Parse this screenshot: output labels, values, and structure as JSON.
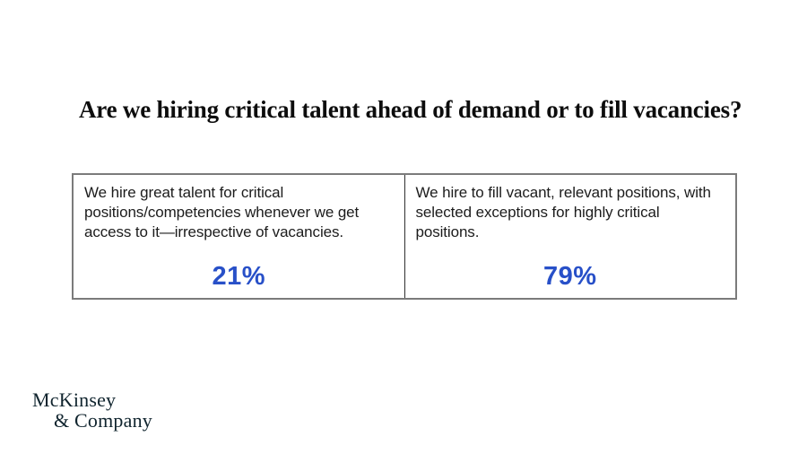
{
  "slide": {
    "title": "Are we hiring critical talent ahead of demand or to fill vacancies?",
    "options": [
      {
        "description": "We hire great talent for critical positions/competencies whenever we get access to it—irrespective of vacancies.",
        "value": "21%"
      },
      {
        "description": "We hire to fill vacant, relevant positions, with selected exceptions for highly critical positions.",
        "value": "79%"
      }
    ],
    "logo": {
      "line1": "McKinsey",
      "line2": "& Company"
    }
  },
  "chart_data": {
    "type": "table",
    "title": "Are we hiring critical talent ahead of demand or to fill vacancies?",
    "categories": [
      "We hire great talent for critical positions/competencies whenever we get access to it—irrespective of vacancies.",
      "We hire to fill vacant, relevant positions, with selected exceptions for highly critical positions."
    ],
    "values": [
      21,
      79
    ],
    "unit": "%"
  },
  "colors": {
    "accent_blue": "#2850c8",
    "logo_navy": "#10242e",
    "border_gray": "#7b7b7b",
    "divider_dark": "#303030"
  }
}
